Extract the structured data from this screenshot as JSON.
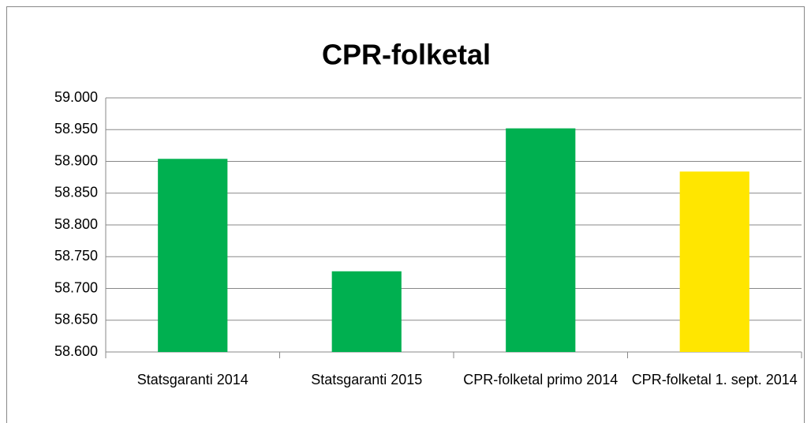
{
  "chart_data": {
    "type": "bar",
    "title": "CPR-folketal",
    "categories": [
      "Statsgaranti 2014",
      "Statsgaranti 2015",
      "CPR-folketal primo 2014",
      "CPR-folketal 1. sept. 2014"
    ],
    "values": [
      58904,
      58727,
      58952,
      58884
    ],
    "colors": [
      "#00b050",
      "#00b050",
      "#00b050",
      "#ffe600"
    ],
    "ylim": [
      58600,
      59000
    ],
    "yticks": [
      {
        "value": 58600,
        "label": "58.600"
      },
      {
        "value": 58650,
        "label": "58.650"
      },
      {
        "value": 58700,
        "label": "58.700"
      },
      {
        "value": 58750,
        "label": "58.750"
      },
      {
        "value": 58800,
        "label": "58.800"
      },
      {
        "value": 58850,
        "label": "58.850"
      },
      {
        "value": 58900,
        "label": "58.900"
      },
      {
        "value": 58950,
        "label": "58.950"
      },
      {
        "value": 59000,
        "label": "59.000"
      }
    ],
    "grid": true
  }
}
